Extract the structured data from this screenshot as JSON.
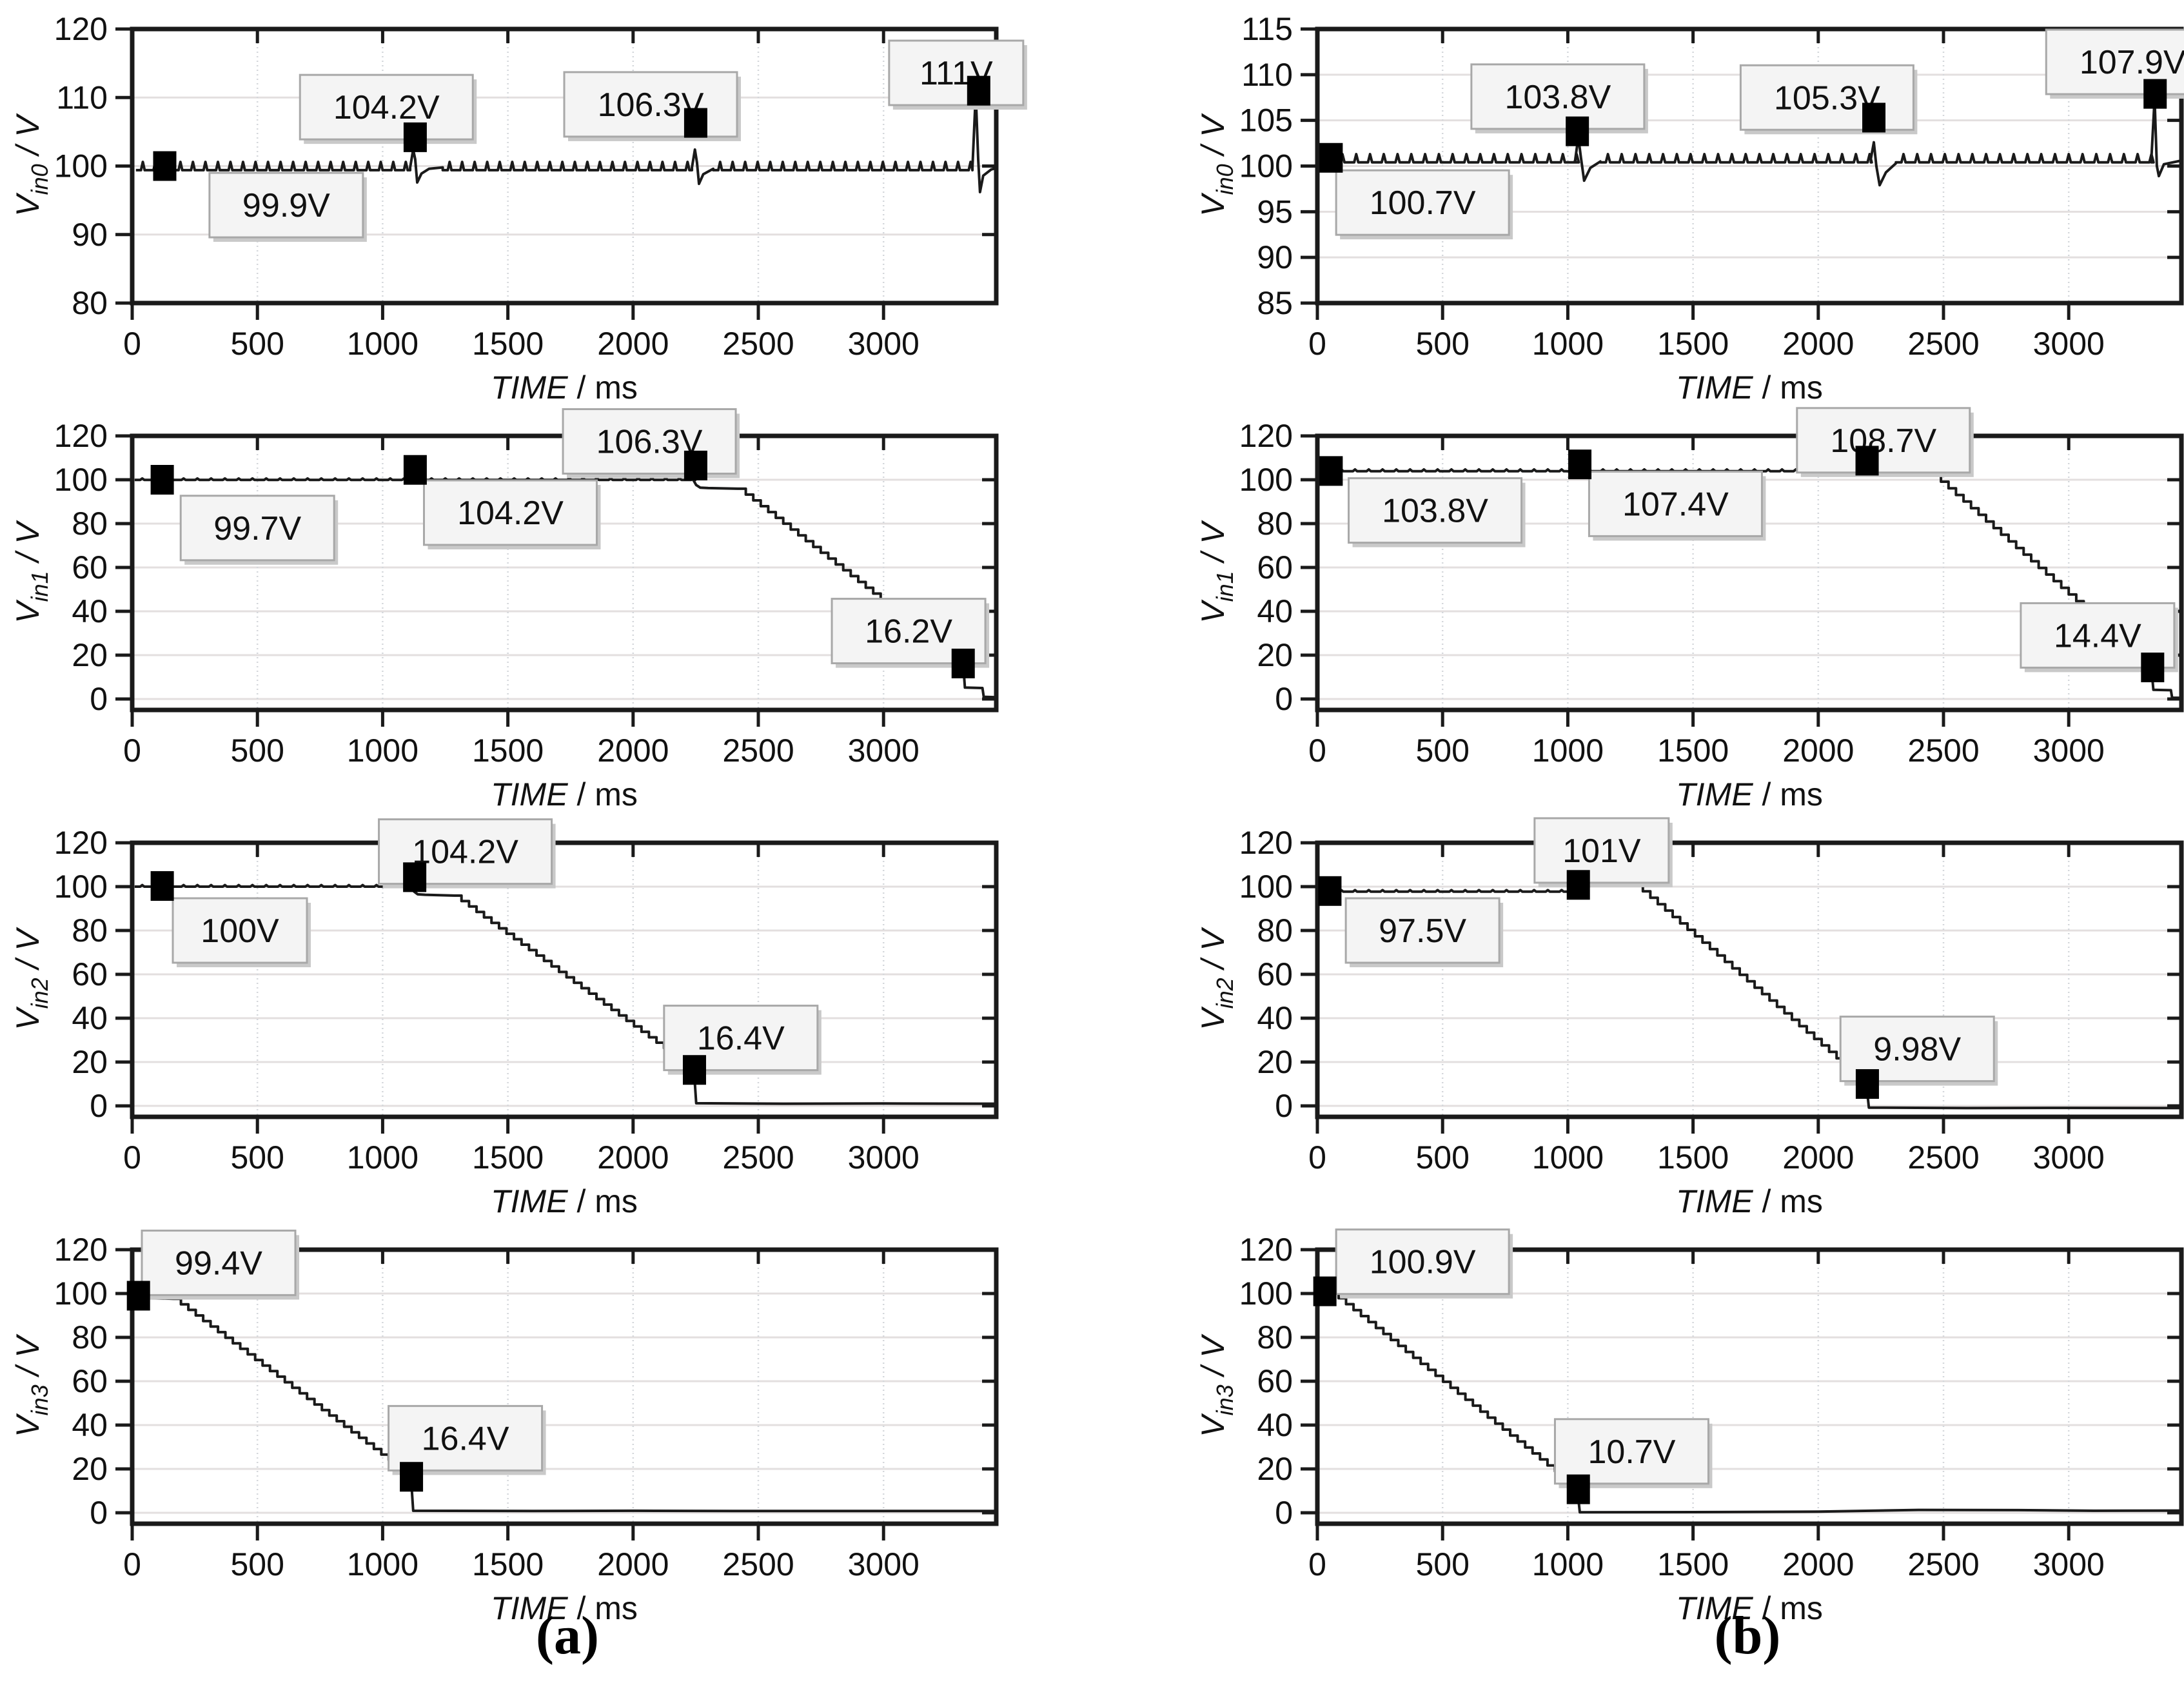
{
  "page": {
    "captions": [
      {
        "label": "(a)"
      },
      {
        "label": "(b)"
      }
    ]
  },
  "colors": {
    "trace": "#1a1a1a",
    "axis": "#1a1a1a",
    "grid_h": "#e3dfdf",
    "grid_v": "#d4d7db",
    "marker": "#000000",
    "annotation_bg": "#f4f4f4",
    "annotation_border": "#a8a8a8",
    "annotation_shadow": "#c9c9c9",
    "text": "#111111"
  },
  "chart_data": [
    {
      "type": "line",
      "col": "a",
      "row": 0,
      "ylabel_base": "V",
      "ylabel_sub": "in0",
      "ylabel_rest": " / V",
      "xlabel_italic": "TIME",
      "xlabel_rest": " / ms",
      "xlim": [
        0,
        3450
      ],
      "ylim": [
        80,
        120
      ],
      "xticks": [
        0,
        500,
        1000,
        1500,
        2000,
        2500,
        3000
      ],
      "yticks": [
        80,
        90,
        100,
        110,
        120
      ],
      "grid": true,
      "legend": "none",
      "segments": [
        {
          "t": "ripple",
          "x0": 15,
          "x1": 1110,
          "y": 99.4,
          "amp": 1.2,
          "period": 50
        },
        {
          "t": "line",
          "pts": [
            [
              1110,
              99.8
            ],
            [
              1122,
              102.4
            ],
            [
              1130,
              101.0
            ],
            [
              1138,
              97.6
            ],
            [
              1155,
              98.9
            ],
            [
              1185,
              99.6
            ],
            [
              1240,
              99.8
            ]
          ]
        },
        {
          "t": "ripple",
          "x0": 1240,
          "x1": 2235,
          "y": 99.4,
          "amp": 1.2,
          "period": 50
        },
        {
          "t": "line",
          "pts": [
            [
              2235,
              99.8
            ],
            [
              2247,
              102.4
            ],
            [
              2255,
              100.5
            ],
            [
              2263,
              97.4
            ],
            [
              2280,
              98.8
            ],
            [
              2320,
              99.6
            ]
          ]
        },
        {
          "t": "ripple",
          "x0": 2320,
          "x1": 3355,
          "y": 99.4,
          "amp": 1.2,
          "period": 50
        },
        {
          "t": "line",
          "pts": [
            [
              3355,
              99.8
            ],
            [
              3368,
              110.6
            ],
            [
              3378,
              101.0
            ],
            [
              3385,
              96.2
            ],
            [
              3398,
              98.6
            ],
            [
              3430,
              99.5
            ],
            [
              3450,
              99.7
            ]
          ]
        }
      ],
      "markers": [
        {
          "x": 130,
          "y": 100,
          "label": "99.9V",
          "bx": 615,
          "by": 94.3
        },
        {
          "x": 1130,
          "y": 104.2,
          "label": "104.2V",
          "bx": 1015,
          "by": 108.6
        },
        {
          "x": 2250,
          "y": 106.3,
          "label": "106.3V",
          "bx": 2070,
          "by": 109.0
        },
        {
          "x": 3380,
          "y": 111,
          "label": "111V",
          "bx": 3290,
          "by": 113.6
        }
      ]
    },
    {
      "type": "line",
      "col": "b",
      "row": 0,
      "ylabel_base": "V",
      "ylabel_sub": "in0",
      "ylabel_rest": " / V",
      "xlabel_italic": "TIME",
      "xlabel_rest": " / ms",
      "xlim": [
        0,
        3450
      ],
      "ylim": [
        85,
        115
      ],
      "xticks": [
        0,
        500,
        1000,
        1500,
        2000,
        2500,
        3000
      ],
      "yticks": [
        85,
        90,
        95,
        100,
        105,
        110,
        115
      ],
      "grid": true,
      "legend": "none",
      "segments": [
        {
          "t": "ripple",
          "x0": 15,
          "x1": 1030,
          "y": 100.4,
          "amp": 0.9,
          "period": 55
        },
        {
          "t": "line",
          "pts": [
            [
              1030,
              100.8
            ],
            [
              1042,
              103.2
            ],
            [
              1052,
              101.0
            ],
            [
              1065,
              98.4
            ],
            [
              1090,
              99.8
            ],
            [
              1130,
              100.5
            ]
          ]
        },
        {
          "t": "ripple",
          "x0": 1130,
          "x1": 2210,
          "y": 100.4,
          "amp": 0.9,
          "period": 55
        },
        {
          "t": "line",
          "pts": [
            [
              2210,
              100.8
            ],
            [
              2222,
              102.6
            ],
            [
              2232,
              100.0
            ],
            [
              2245,
              97.9
            ],
            [
              2270,
              99.3
            ],
            [
              2310,
              100.3
            ]
          ]
        },
        {
          "t": "ripple",
          "x0": 2310,
          "x1": 3330,
          "y": 100.4,
          "amp": 0.9,
          "period": 55
        },
        {
          "t": "line",
          "pts": [
            [
              3330,
              100.8
            ],
            [
              3343,
              107.4
            ],
            [
              3352,
              100.0
            ],
            [
              3360,
              98.9
            ],
            [
              3380,
              100.2
            ],
            [
              3450,
              100.6
            ]
          ]
        }
      ],
      "markers": [
        {
          "x": 55,
          "y": 100.9,
          "label": "100.7V",
          "bx": 420,
          "by": 96.0
        },
        {
          "x": 1038,
          "y": 103.8,
          "label": "103.8V",
          "bx": 960,
          "by": 107.6
        },
        {
          "x": 2222,
          "y": 105.3,
          "label": "105.3V",
          "bx": 2035,
          "by": 107.5
        },
        {
          "x": 3345,
          "y": 107.9,
          "label": "107.9V",
          "bx": 3255,
          "by": 111.4
        }
      ]
    },
    {
      "type": "line",
      "col": "a",
      "row": 1,
      "ylabel_base": "V",
      "ylabel_sub": "in1",
      "ylabel_rest": " / V",
      "xlabel_italic": "TIME",
      "xlabel_rest": " / ms",
      "xlim": [
        0,
        3450
      ],
      "ylim": [
        -5,
        120
      ],
      "xticks": [
        0,
        500,
        1000,
        1500,
        2000,
        2500,
        3000
      ],
      "yticks": [
        0,
        20,
        40,
        60,
        80,
        100,
        120
      ],
      "grid": true,
      "legend": "none",
      "segments": [
        {
          "t": "ripple",
          "x0": 10,
          "x1": 2240,
          "y": 99.9,
          "amp": 0.7,
          "period": 55
        },
        {
          "t": "line",
          "pts": [
            [
              2240,
              100.0
            ],
            [
              2252,
              97.6
            ],
            [
              2268,
              96.4
            ],
            [
              2300,
              96.2
            ],
            [
              2420,
              95.9
            ]
          ]
        },
        {
          "t": "stairs",
          "x0": 2420,
          "y0": 95.9,
          "x1": 3318,
          "y1": 16.2,
          "step": 30
        },
        {
          "t": "line",
          "pts": [
            [
              3318,
              16.2
            ],
            [
              3325,
              5.2
            ],
            [
              3395,
              5.0
            ],
            [
              3400,
              1.0
            ],
            [
              3450,
              0.8
            ]
          ]
        }
      ],
      "markers": [
        {
          "x": 120,
          "y": 100,
          "label": "99.7V",
          "bx": 500,
          "by": 78
        },
        {
          "x": 1130,
          "y": 104.5,
          "label": "104.2V",
          "bx": 1510,
          "by": 85
        },
        {
          "x": 2250,
          "y": 106.5,
          "label": "106.3V",
          "bx": 2065,
          "by": 117.5
        },
        {
          "x": 3318,
          "y": 16.2,
          "label": "16.2V",
          "bx": 3100,
          "by": 31,
          "leader": true
        }
      ]
    },
    {
      "type": "line",
      "col": "b",
      "row": 1,
      "ylabel_base": "V",
      "ylabel_sub": "in1",
      "ylabel_rest": " / V",
      "xlabel_italic": "TIME",
      "xlabel_rest": " / ms",
      "xlim": [
        0,
        3450
      ],
      "ylim": [
        -5,
        120
      ],
      "xticks": [
        0,
        500,
        1000,
        1500,
        2000,
        2500,
        3000
      ],
      "yticks": [
        0,
        20,
        40,
        60,
        80,
        100,
        120
      ],
      "grid": true,
      "legend": "none",
      "segments": [
        {
          "t": "ripple",
          "x0": 10,
          "x1": 2190,
          "y": 103.9,
          "amp": 0.8,
          "period": 55
        },
        {
          "t": "line",
          "pts": [
            [
              2190,
              104.3
            ],
            [
              2240,
              105.8
            ],
            [
              2290,
              107.9
            ],
            [
              2330,
              108.4
            ],
            [
              2400,
              108.2
            ]
          ]
        },
        {
          "t": "stairs",
          "x0": 2400,
          "y0": 108.2,
          "x1": 3330,
          "y1": 14.4,
          "step": 30
        },
        {
          "t": "line",
          "pts": [
            [
              3330,
              14.4
            ],
            [
              3338,
              4.2
            ],
            [
              3408,
              4.0
            ],
            [
              3413,
              0.6
            ],
            [
              3450,
              0.5
            ]
          ]
        }
      ],
      "markers": [
        {
          "x": 55,
          "y": 104,
          "label": "103.8V",
          "bx": 470,
          "by": 86
        },
        {
          "x": 1048,
          "y": 107,
          "label": "107.4V",
          "bx": 1430,
          "by": 89
        },
        {
          "x": 2195,
          "y": 108.7,
          "label": "108.7V",
          "bx": 2260,
          "by": 118
        },
        {
          "x": 3335,
          "y": 14.4,
          "label": "14.4V",
          "bx": 3115,
          "by": 29,
          "leader": true
        }
      ]
    },
    {
      "type": "line",
      "col": "a",
      "row": 2,
      "ylabel_base": "V",
      "ylabel_sub": "in2",
      "ylabel_rest": " / V",
      "xlabel_italic": "TIME",
      "xlabel_rest": " / ms",
      "xlim": [
        0,
        3450
      ],
      "ylim": [
        -5,
        120
      ],
      "xticks": [
        0,
        500,
        1000,
        1500,
        2000,
        2500,
        3000
      ],
      "yticks": [
        0,
        20,
        40,
        60,
        80,
        100,
        120
      ],
      "grid": true,
      "legend": "none",
      "segments": [
        {
          "t": "ripple",
          "x0": 10,
          "x1": 1112,
          "y": 100.0,
          "amp": 0.7,
          "period": 55
        },
        {
          "t": "line",
          "pts": [
            [
              1112,
              100.3
            ],
            [
              1125,
              97.8
            ],
            [
              1140,
              96.5
            ],
            [
              1170,
              96.3
            ],
            [
              1285,
              95.9
            ]
          ]
        },
        {
          "t": "stairs",
          "x0": 1285,
          "y0": 95.9,
          "x1": 2243,
          "y1": 16.4,
          "step": 30
        },
        {
          "t": "line",
          "pts": [
            [
              2243,
              16.4
            ],
            [
              2252,
              1.2
            ],
            [
              2600,
              1.0
            ],
            [
              3000,
              1.1
            ],
            [
              3450,
              1.0
            ]
          ]
        }
      ],
      "markers": [
        {
          "x": 120,
          "y": 100.3,
          "label": "100V",
          "bx": 430,
          "by": 80
        },
        {
          "x": 1128,
          "y": 104.3,
          "label": "104.2V",
          "bx": 1330,
          "by": 116
        },
        {
          "x": 2245,
          "y": 16.4,
          "label": "16.4V",
          "bx": 2430,
          "by": 31
        }
      ]
    },
    {
      "type": "line",
      "col": "b",
      "row": 2,
      "ylabel_base": "V",
      "ylabel_sub": "in2",
      "ylabel_rest": " / V",
      "xlabel_italic": "TIME",
      "xlabel_rest": " / ms",
      "xlim": [
        0,
        3450
      ],
      "ylim": [
        -5,
        120
      ],
      "xticks": [
        0,
        500,
        1000,
        1500,
        2000,
        2500,
        3000
      ],
      "yticks": [
        0,
        20,
        40,
        60,
        80,
        100,
        120
      ],
      "grid": true,
      "legend": "none",
      "segments": [
        {
          "t": "ripple",
          "x0": 10,
          "x1": 1038,
          "y": 97.7,
          "amp": 0.7,
          "period": 55
        },
        {
          "t": "line",
          "pts": [
            [
              1038,
              98.2
            ],
            [
              1080,
              100.2
            ],
            [
              1150,
              101.2
            ],
            [
              1220,
              101.4
            ],
            [
              1270,
              100.8
            ]
          ]
        },
        {
          "t": "stairs",
          "x0": 1270,
          "y0": 100.8,
          "x1": 2192,
          "y1": 9.98,
          "step": 30
        },
        {
          "t": "line",
          "pts": [
            [
              2192,
              9.98
            ],
            [
              2202,
              -0.8
            ],
            [
              2600,
              -1.0
            ],
            [
              3000,
              -0.9
            ],
            [
              3450,
              -1.0
            ]
          ]
        }
      ],
      "markers": [
        {
          "x": 50,
          "y": 98,
          "label": "97.5V",
          "bx": 420,
          "by": 80
        },
        {
          "x": 1042,
          "y": 100.8,
          "label": "101V",
          "bx": 1135,
          "by": 116.5
        },
        {
          "x": 2196,
          "y": 9.98,
          "label": "9.98V",
          "bx": 2395,
          "by": 26
        }
      ]
    },
    {
      "type": "line",
      "col": "a",
      "row": 3,
      "ylabel_base": "V",
      "ylabel_sub": "in3",
      "ylabel_rest": " / V",
      "xlabel_italic": "TIME",
      "xlabel_rest": " / ms",
      "xlim": [
        0,
        3450
      ],
      "ylim": [
        -5,
        120
      ],
      "xticks": [
        0,
        500,
        1000,
        1500,
        2000,
        2500,
        3000
      ],
      "yticks": [
        0,
        20,
        40,
        60,
        80,
        100,
        120
      ],
      "grid": true,
      "legend": "none",
      "segments": [
        {
          "t": "line",
          "pts": [
            [
              0,
              98.0
            ],
            [
              60,
              97.9
            ],
            [
              165,
              97.6
            ]
          ]
        },
        {
          "t": "stairs",
          "x0": 165,
          "y0": 97.6,
          "x1": 1113,
          "y1": 16.4,
          "step": 30
        },
        {
          "t": "line",
          "pts": [
            [
              1113,
              16.4
            ],
            [
              1122,
              0.9
            ],
            [
              1600,
              0.8
            ],
            [
              2000,
              0.9
            ],
            [
              2400,
              0.8
            ],
            [
              3450,
              0.8
            ]
          ]
        }
      ],
      "markers": [
        {
          "x": 25,
          "y": 99,
          "label": "99.4V",
          "bx": 345,
          "by": 114
        },
        {
          "x": 1115,
          "y": 16.4,
          "label": "16.4V",
          "bx": 1330,
          "by": 34
        }
      ]
    },
    {
      "type": "line",
      "col": "b",
      "row": 3,
      "ylabel_base": "V",
      "ylabel_sub": "in3",
      "ylabel_rest": " / V",
      "xlabel_italic": "TIME",
      "xlabel_rest": " / ms",
      "xlim": [
        0,
        3450
      ],
      "ylim": [
        -5,
        120
      ],
      "xticks": [
        0,
        500,
        1000,
        1500,
        2000,
        2500,
        3000
      ],
      "yticks": [
        0,
        20,
        40,
        60,
        80,
        100,
        120
      ],
      "grid": true,
      "legend": "none",
      "segments": [
        {
          "t": "line",
          "pts": [
            [
              0,
              101.0
            ],
            [
              55,
              100.6
            ]
          ]
        },
        {
          "t": "stairs",
          "x0": 55,
          "y0": 100.6,
          "x1": 1038,
          "y1": 10.7,
          "step": 30
        },
        {
          "t": "line",
          "pts": [
            [
              1038,
              10.7
            ],
            [
              1048,
              0.2
            ],
            [
              1500,
              0.3
            ],
            [
              2000,
              0.5
            ],
            [
              2400,
              1.3
            ],
            [
              2800,
              1.2
            ],
            [
              3100,
              0.9
            ],
            [
              3450,
              1.0
            ]
          ]
        }
      ],
      "markers": [
        {
          "x": 30,
          "y": 101,
          "label": "100.9V",
          "bx": 420,
          "by": 114.5
        },
        {
          "x": 1042,
          "y": 10.7,
          "label": "10.7V",
          "bx": 1255,
          "by": 28
        }
      ]
    }
  ]
}
